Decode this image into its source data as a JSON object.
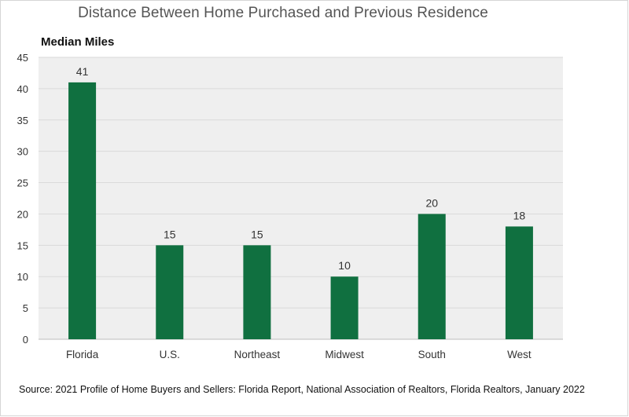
{
  "chart_data": {
    "type": "bar",
    "title": "Distance Between Home Purchased and Previous Residence",
    "ylabel": "Median Miles",
    "xlabel": "",
    "categories": [
      "Florida",
      "U.S.",
      "Northeast",
      "Midwest",
      "South",
      "West"
    ],
    "values": [
      41,
      15,
      15,
      10,
      20,
      18
    ],
    "data_labels": [
      "41",
      "15",
      "15",
      "10",
      "20",
      "18"
    ],
    "ylim": [
      0,
      45
    ],
    "yticks": [
      0,
      5,
      10,
      15,
      20,
      25,
      30,
      35,
      40,
      45
    ],
    "grid": true,
    "legend": "none",
    "colors": {
      "bar": "#107040",
      "plot_background": "#efefef",
      "gridline": "#dadada"
    }
  },
  "footer": {
    "source": "Source: 2021 Profile of Home Buyers and Sellers: Florida Report, National Association of Realtors, Florida Realtors, January 2022"
  }
}
